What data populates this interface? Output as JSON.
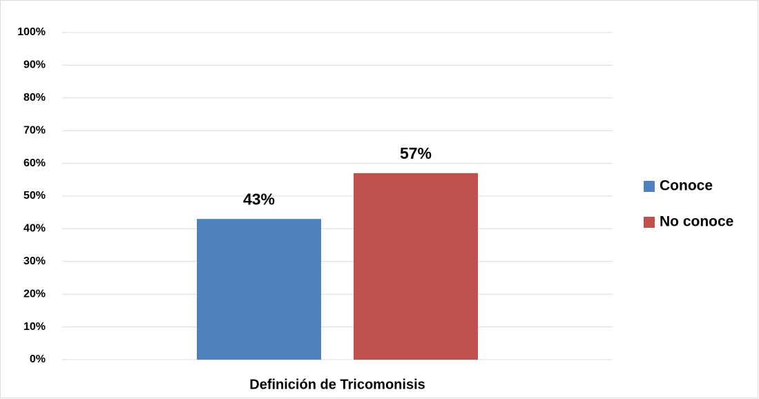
{
  "chart_data": {
    "type": "bar",
    "categories": [
      "Definición de Tricomonisis"
    ],
    "series": [
      {
        "name": "Conoce",
        "color": "#4f81bd",
        "values": [
          43
        ],
        "value_labels": [
          "43%"
        ]
      },
      {
        "name": "No conoce",
        "color": "#c0504d",
        "values": [
          57
        ],
        "value_labels": [
          "57%"
        ]
      }
    ],
    "ylim": [
      0,
      100
    ],
    "yticks": [
      {
        "value": 0,
        "label": "0%"
      },
      {
        "value": 10,
        "label": "10%"
      },
      {
        "value": 20,
        "label": "20%"
      },
      {
        "value": 30,
        "label": "30%"
      },
      {
        "value": 40,
        "label": "40%"
      },
      {
        "value": 50,
        "label": "50%"
      },
      {
        "value": 60,
        "label": "60%"
      },
      {
        "value": 70,
        "label": "70%"
      },
      {
        "value": 80,
        "label": "80%"
      },
      {
        "value": 90,
        "label": "90%"
      },
      {
        "value": 100,
        "label": "100%"
      }
    ],
    "grid": true,
    "legend": "right"
  }
}
